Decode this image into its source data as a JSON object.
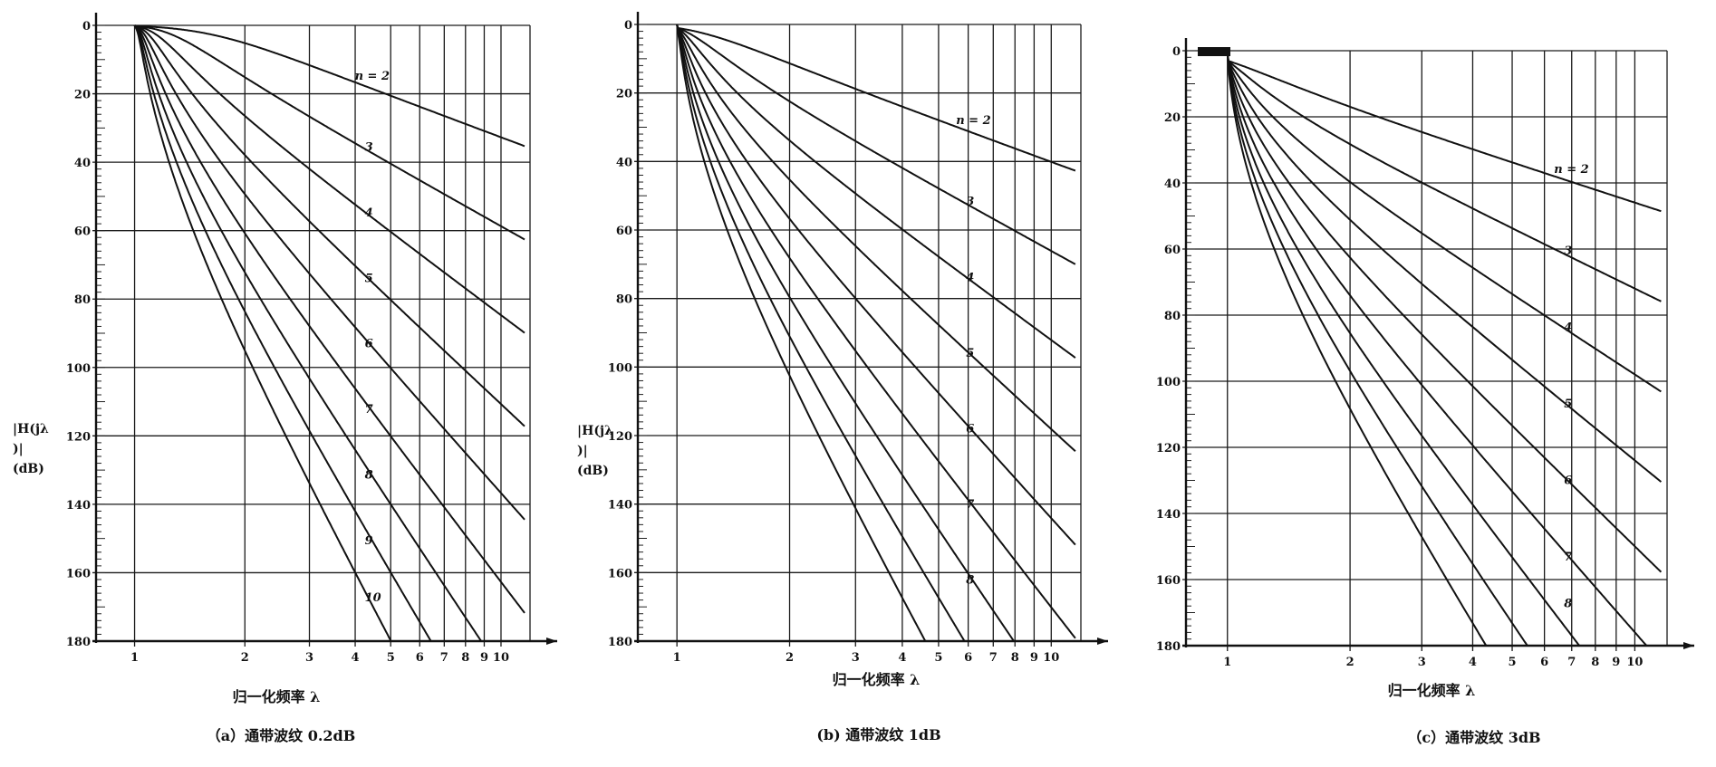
{
  "chart_data": [
    {
      "type": "line",
      "caption": "（a）通带波纹 0.2dB",
      "ylabel_lines": [
        "|H(jλ",
        ")|",
        "(dB)"
      ],
      "xlabel": "归一化频率 λ",
      "x_scale": "log",
      "xlim": [
        0.85,
        12
      ],
      "ylim": [
        0,
        180
      ],
      "y_inverted": true,
      "y_ticks": [
        0,
        20,
        40,
        60,
        80,
        100,
        120,
        140,
        160,
        180
      ],
      "x_ticks": [
        1,
        2,
        3,
        4,
        5,
        6,
        7,
        8,
        9,
        10
      ],
      "grid": true,
      "ripple_db": 0.2,
      "series_range": [
        2,
        10
      ],
      "curve_labels": [
        {
          "text": "n = 2",
          "n": 2
        },
        {
          "text": "3",
          "n": 3
        },
        {
          "text": "4",
          "n": 4
        },
        {
          "text": "5",
          "n": 5
        },
        {
          "text": "6",
          "n": 6
        },
        {
          "text": "7",
          "n": 7
        },
        {
          "text": "8",
          "n": 8
        },
        {
          "text": "9",
          "n": 9
        },
        {
          "text": "10",
          "n": 10
        }
      ]
    },
    {
      "type": "line",
      "caption": "(b) 通带波纹 1dB",
      "ylabel_lines": [
        "|H(jλ",
        ")|",
        "(dB)"
      ],
      "xlabel": "归一化频率 λ",
      "x_scale": "log",
      "xlim": [
        0.85,
        12
      ],
      "ylim": [
        0,
        180
      ],
      "y_inverted": true,
      "y_ticks": [
        0,
        20,
        40,
        60,
        80,
        100,
        120,
        140,
        160,
        180
      ],
      "x_ticks": [
        1,
        2,
        3,
        4,
        5,
        6,
        7,
        8,
        9,
        10
      ],
      "grid": true,
      "ripple_db": 1,
      "series_range": [
        2,
        10
      ],
      "curve_labels": [
        {
          "text": "n = 2",
          "n": 2
        },
        {
          "text": "3",
          "n": 3
        },
        {
          "text": "4",
          "n": 4
        },
        {
          "text": "5",
          "n": 5
        },
        {
          "text": "6",
          "n": 6
        },
        {
          "text": "7",
          "n": 7
        },
        {
          "text": "8",
          "n": 8
        }
      ]
    },
    {
      "type": "line",
      "caption": "（c）通带波纹 3dB",
      "ylabel_lines": [],
      "xlabel": "归一化频率 λ",
      "x_scale": "log",
      "xlim": [
        0.85,
        12
      ],
      "ylim": [
        0,
        180
      ],
      "y_inverted": true,
      "y_ticks": [
        0,
        20,
        40,
        60,
        80,
        100,
        120,
        140,
        160,
        180
      ],
      "x_ticks": [
        1,
        2,
        3,
        4,
        5,
        6,
        7,
        8,
        9,
        10
      ],
      "grid": true,
      "ripple_db": 3,
      "series_range": [
        2,
        10
      ],
      "curve_labels": [
        {
          "text": "n = 2",
          "n": 2
        },
        {
          "text": "3",
          "n": 3
        },
        {
          "text": "4",
          "n": 4
        },
        {
          "text": "5",
          "n": 5
        },
        {
          "text": "6",
          "n": 6
        },
        {
          "text": "7",
          "n": 7
        },
        {
          "text": "8",
          "n": 8
        }
      ]
    }
  ]
}
